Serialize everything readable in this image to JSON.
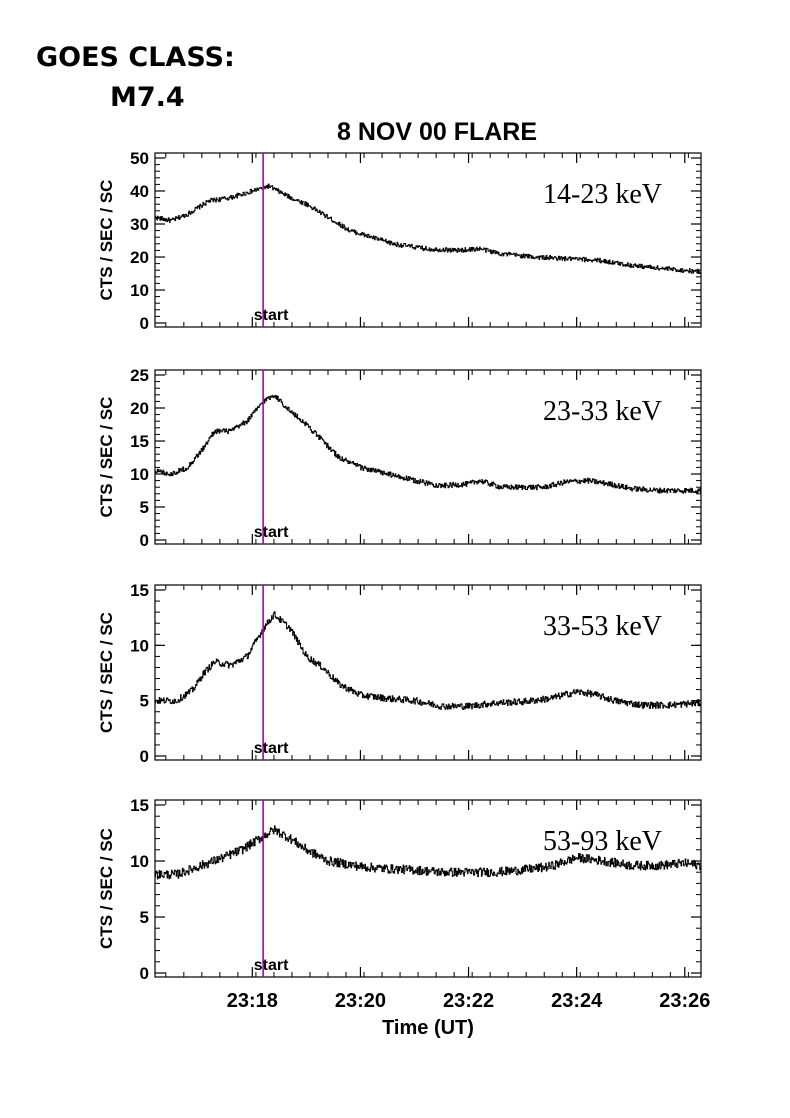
{
  "header": {
    "goes_line1": "GOES CLASS:",
    "goes_line2": "M7.4"
  },
  "colors": {
    "marker": "#b000b0",
    "trace": "#000000",
    "axes": "#000000"
  },
  "chart_data": {
    "type": "line",
    "title": "8 NOV 00 FLARE",
    "xlabel": "Time (UT)",
    "x_tick_labels": [
      "23:18",
      "23:20",
      "23:22",
      "23:24",
      "23:26"
    ],
    "x_ticks_min": [
      18,
      20,
      22,
      24,
      26
    ],
    "xlim_min": [
      16.2,
      26.3
    ],
    "marker": {
      "label": "start",
      "x_min": 18.2
    },
    "panels": [
      {
        "band": "14-23 keV",
        "ylabel": "CTS / SEC / SC",
        "ylim": [
          0,
          50
        ],
        "yticks": [
          0,
          10,
          20,
          30,
          40,
          50
        ],
        "noise": 0.7,
        "profile": [
          [
            16.2,
            32
          ],
          [
            16.5,
            31
          ],
          [
            16.8,
            33
          ],
          [
            17.2,
            37
          ],
          [
            17.6,
            38
          ],
          [
            18.0,
            40
          ],
          [
            18.3,
            41.5
          ],
          [
            18.7,
            38
          ],
          [
            19.0,
            36
          ],
          [
            19.4,
            32
          ],
          [
            19.8,
            28
          ],
          [
            20.2,
            26
          ],
          [
            20.6,
            24
          ],
          [
            21.2,
            22.5
          ],
          [
            21.8,
            22
          ],
          [
            22.2,
            22.5
          ],
          [
            22.6,
            21
          ],
          [
            23.2,
            20
          ],
          [
            23.8,
            19.5
          ],
          [
            24.4,
            19
          ],
          [
            25.0,
            17.5
          ],
          [
            25.6,
            16.5
          ],
          [
            26.3,
            15.5
          ]
        ]
      },
      {
        "band": "23-33 keV",
        "ylabel": "CTS / SEC / SC",
        "ylim": [
          0,
          25
        ],
        "yticks": [
          0,
          5,
          10,
          15,
          20,
          25
        ],
        "noise": 0.4,
        "profile": [
          [
            16.2,
            10.5
          ],
          [
            16.5,
            10
          ],
          [
            16.8,
            11
          ],
          [
            17.1,
            14
          ],
          [
            17.3,
            16.5
          ],
          [
            17.6,
            16.5
          ],
          [
            17.9,
            18
          ],
          [
            18.2,
            21
          ],
          [
            18.4,
            22
          ],
          [
            18.7,
            19.5
          ],
          [
            19.0,
            17.5
          ],
          [
            19.3,
            15
          ],
          [
            19.6,
            12.5
          ],
          [
            20.0,
            11
          ],
          [
            20.5,
            10
          ],
          [
            21.0,
            9
          ],
          [
            21.5,
            8.2
          ],
          [
            22.0,
            8.5
          ],
          [
            22.2,
            9
          ],
          [
            22.6,
            8
          ],
          [
            23.0,
            8
          ],
          [
            23.4,
            8
          ],
          [
            23.8,
            8.8
          ],
          [
            24.2,
            9
          ],
          [
            24.6,
            8.5
          ],
          [
            25.0,
            7.8
          ],
          [
            25.5,
            7.5
          ],
          [
            26.3,
            7.5
          ]
        ]
      },
      {
        "band": "33-53 keV",
        "ylabel": "CTS / SEC / SC",
        "ylim": [
          0,
          15
        ],
        "yticks": [
          0,
          5,
          10,
          15
        ],
        "noise": 0.3,
        "profile": [
          [
            16.2,
            5
          ],
          [
            16.6,
            5
          ],
          [
            16.9,
            6
          ],
          [
            17.1,
            7.5
          ],
          [
            17.3,
            8.5
          ],
          [
            17.6,
            8.2
          ],
          [
            17.9,
            9
          ],
          [
            18.2,
            11.5
          ],
          [
            18.4,
            12.8
          ],
          [
            18.7,
            11.5
          ],
          [
            19.0,
            9
          ],
          [
            19.3,
            8
          ],
          [
            19.6,
            6.5
          ],
          [
            20.0,
            5.5
          ],
          [
            20.5,
            5.2
          ],
          [
            21.0,
            5
          ],
          [
            21.5,
            4.5
          ],
          [
            22.0,
            4.5
          ],
          [
            22.5,
            4.8
          ],
          [
            23.0,
            4.9
          ],
          [
            23.5,
            5.2
          ],
          [
            24.0,
            5.8
          ],
          [
            24.3,
            5.6
          ],
          [
            24.7,
            5
          ],
          [
            25.2,
            4.6
          ],
          [
            25.7,
            4.6
          ],
          [
            26.3,
            4.8
          ]
        ]
      },
      {
        "band": "53-93 keV",
        "ylabel": "CTS / SEC / SC",
        "ylim": [
          0,
          15
        ],
        "yticks": [
          0,
          5,
          10,
          15
        ],
        "noise": 0.4,
        "profile": [
          [
            16.2,
            8.8
          ],
          [
            16.6,
            8.8
          ],
          [
            17.0,
            9.5
          ],
          [
            17.4,
            10.2
          ],
          [
            17.8,
            11
          ],
          [
            18.2,
            12.2
          ],
          [
            18.4,
            12.8
          ],
          [
            18.7,
            12
          ],
          [
            19.0,
            11
          ],
          [
            19.4,
            10
          ],
          [
            20.0,
            9.5
          ],
          [
            20.5,
            9.3
          ],
          [
            21.0,
            9.2
          ],
          [
            21.5,
            9
          ],
          [
            22.0,
            9
          ],
          [
            22.5,
            9
          ],
          [
            23.0,
            9.2
          ],
          [
            23.5,
            9.5
          ],
          [
            24.0,
            10.3
          ],
          [
            24.5,
            10
          ],
          [
            25.0,
            9.6
          ],
          [
            25.5,
            9.6
          ],
          [
            26.0,
            9.8
          ],
          [
            26.3,
            9.6
          ]
        ]
      }
    ]
  }
}
